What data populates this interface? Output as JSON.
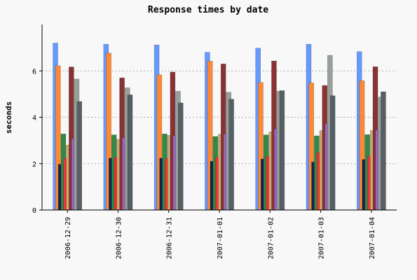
{
  "chart_data": {
    "type": "bar",
    "title": "Response times by date",
    "xlabel": "",
    "ylabel": "seconds",
    "ylim": [
      0,
      8
    ],
    "yticks": [
      0,
      2,
      4,
      6
    ],
    "grid": true,
    "categories": [
      "2006-12-29",
      "2006-12-30",
      "2006-12-31",
      "2007-01-01",
      "2007-01-02",
      "2007-01-03",
      "2007-01-04"
    ],
    "series": [
      {
        "color": "#6699ff",
        "values": [
          7.2,
          7.15,
          7.12,
          6.8,
          6.98,
          7.15,
          6.83
        ]
      },
      {
        "color": "#ff8833",
        "values": [
          6.22,
          6.77,
          5.83,
          6.42,
          5.5,
          5.48,
          5.58
        ]
      },
      {
        "color": "#112255",
        "values": [
          1.97,
          2.24,
          2.24,
          2.1,
          2.2,
          2.07,
          2.18
        ]
      },
      {
        "color": "#338844",
        "values": [
          3.28,
          3.24,
          3.28,
          3.17,
          3.24,
          3.2,
          3.25
        ]
      },
      {
        "color": "#ee3333",
        "values": [
          2.22,
          2.26,
          2.22,
          2.26,
          2.3,
          2.48,
          2.32
        ]
      },
      {
        "color": "#ccaa77",
        "values": [
          2.8,
          3.05,
          3.22,
          3.27,
          3.37,
          3.42,
          3.43
        ]
      },
      {
        "color": "#883333",
        "values": [
          6.17,
          5.7,
          5.95,
          6.3,
          6.43,
          5.37,
          6.18
        ]
      },
      {
        "color": "#9966bb",
        "values": [
          3.08,
          3.12,
          3.2,
          3.28,
          3.5,
          3.72,
          3.45
        ]
      },
      {
        "color": "#99a099",
        "values": [
          5.65,
          5.27,
          5.12,
          5.08,
          5.12,
          6.67,
          4.87
        ]
      },
      {
        "color": "#556066",
        "values": [
          4.68,
          4.97,
          4.62,
          4.78,
          5.15,
          4.93,
          5.1
        ]
      }
    ]
  }
}
